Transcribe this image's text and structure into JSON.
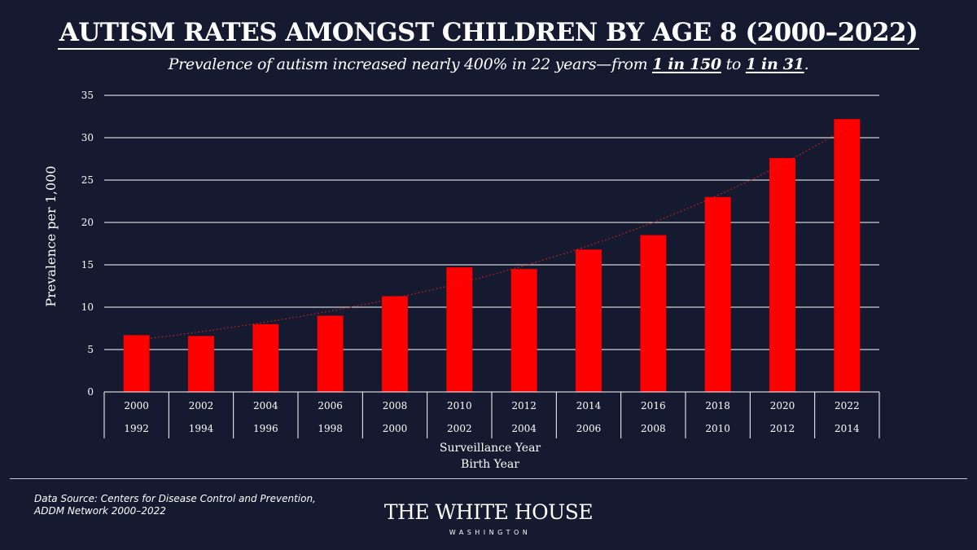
{
  "title": "AUTISM RATES AMONGST CHILDREN BY AGE 8 (2000–2022)",
  "subtitle": {
    "prefix": "Prevalence of autism increased nearly 400% in 22 years—from ",
    "from": "1 in 150",
    "mid": " to ",
    "to": "1 in 31",
    "suffix": "."
  },
  "chart_data": {
    "type": "bar",
    "title": "AUTISM RATES AMONGST CHILDREN BY AGE 8 (2000–2022)",
    "ylabel": "Prevalence per 1,000",
    "xlabel": "Surveillance Year",
    "xlabel2": "Birth Year",
    "ylim": [
      0,
      35
    ],
    "yticks": [
      0,
      5,
      10,
      15,
      20,
      25,
      30,
      35
    ],
    "categories": [
      "2000",
      "2002",
      "2004",
      "2006",
      "2008",
      "2010",
      "2012",
      "2014",
      "2016",
      "2018",
      "2020",
      "2022"
    ],
    "birth_years": [
      "1992",
      "1994",
      "1996",
      "1998",
      "2000",
      "2002",
      "2004",
      "2006",
      "2008",
      "2010",
      "2012",
      "2014"
    ],
    "values": [
      6.7,
      6.6,
      8.0,
      9.0,
      11.3,
      14.7,
      14.5,
      16.8,
      18.5,
      23.0,
      27.6,
      32.2
    ],
    "trendline": "dotted exponential",
    "bar_color": "#ff0000",
    "grid": true
  },
  "colors": {
    "background": "#151a30",
    "bar": "#ff0000",
    "text": "#ffffff"
  },
  "footer": {
    "source_line1": "Data Source: Centers for Disease Control and Prevention,",
    "source_line2": "ADDM Network 2000–2022",
    "logo_name": "THE WHITE HOUSE",
    "logo_sub": "WASHINGTON"
  }
}
